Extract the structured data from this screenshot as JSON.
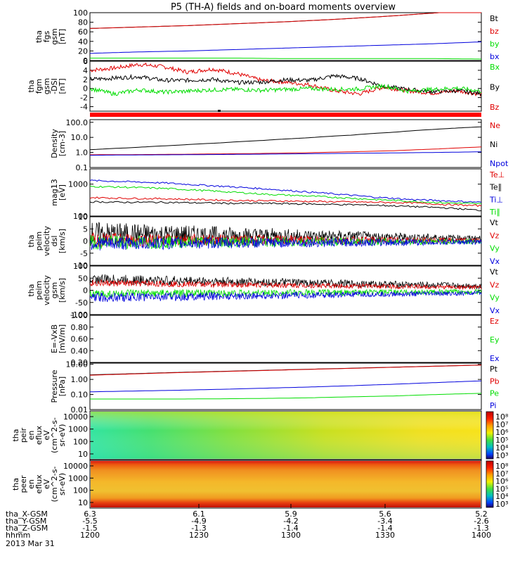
{
  "title": "P5 (TH-A) fields and on-board moments overview",
  "colors": {
    "black": "#000000",
    "red": "#e00000",
    "green": "#00dd00",
    "blue": "#0000dd",
    "bar_red": "#ff0000"
  },
  "chart_data": [
    {
      "id": "fgs",
      "type": "line",
      "ylabel": [
        "tha",
        "fgs",
        "gsm",
        "[nT]"
      ],
      "yticks": [
        "100",
        "80",
        "60",
        "40",
        "20",
        "0"
      ],
      "ylim": [
        0,
        100
      ],
      "legend": [
        {
          "label": "Bt",
          "color": "black"
        },
        {
          "label": "bz",
          "color": "red"
        },
        {
          "label": "by",
          "color": "green"
        },
        {
          "label": "bx",
          "color": "blue"
        }
      ],
      "series": [
        {
          "name": "Bt",
          "color": "black",
          "values": [
            67,
            70,
            73,
            77,
            81,
            86,
            92,
            99,
            106
          ]
        },
        {
          "name": "bz",
          "color": "red",
          "values": [
            67,
            70,
            73,
            77,
            81,
            86,
            92,
            99,
            106
          ]
        },
        {
          "name": "bx",
          "color": "blue",
          "values": [
            15,
            18,
            20,
            23,
            26,
            29,
            32,
            35,
            39
          ]
        },
        {
          "name": "by",
          "color": "green",
          "values": [
            5,
            5,
            5,
            5,
            4,
            4,
            4,
            4,
            3
          ]
        }
      ]
    },
    {
      "id": "fgm",
      "type": "line",
      "ylabel": [
        "tha",
        "fgm",
        "gsm",
        "-DSI",
        "[nT]"
      ],
      "yticks": [
        "6",
        "4",
        "2",
        "0",
        "-2",
        "-4"
      ],
      "ylim": [
        -5,
        6
      ],
      "legend": [
        {
          "label": "Bx",
          "color": "green"
        },
        {
          "label": "By",
          "color": "black"
        },
        {
          "label": "Bz",
          "color": "red"
        }
      ],
      "series": [
        {
          "name": "Bz",
          "color": "red",
          "values": [
            4,
            4.5,
            5.3,
            4.8,
            3.6,
            4.3,
            3.3,
            1.8,
            1.4,
            0.8,
            -0.5,
            -1.2,
            0.3,
            -0.5,
            -1.0,
            -0.5,
            -1.3
          ]
        },
        {
          "name": "By",
          "color": "black",
          "values": [
            2,
            2.3,
            2.6,
            1.8,
            1.8,
            2.0,
            1.3,
            1.4,
            1.9,
            1.8,
            2.8,
            2.2,
            0.5,
            -0.2,
            -0.7,
            -0.5,
            -1.1
          ]
        },
        {
          "name": "Bx",
          "color": "green",
          "values": [
            0,
            -1.2,
            -0.3,
            -0.8,
            -0.6,
            -0.3,
            -0.2,
            -0.4,
            -0.2,
            0.0,
            -0.2,
            -0.1,
            0.6,
            -0.6,
            -0.2,
            0.1,
            -0.6
          ]
        }
      ]
    },
    {
      "id": "density",
      "type": "line",
      "log": true,
      "ylabel": [
        "Density",
        "[cm-3]"
      ],
      "yticks": [
        "100.0",
        "10.0",
        "1.0",
        "0.1"
      ],
      "ylim": [
        0.1,
        150
      ],
      "legend": [
        {
          "label": "Ne",
          "color": "red"
        },
        {
          "label": "Ni",
          "color": "black"
        },
        {
          "label": "Npot",
          "color": "blue"
        }
      ],
      "series": [
        {
          "name": "Ni",
          "color": "black",
          "values": [
            1.5,
            2.1,
            3.0,
            4.3,
            6.3,
            9.3,
            14,
            22,
            35,
            50
          ]
        },
        {
          "name": "Ne",
          "color": "red",
          "values": [
            0.7,
            0.72,
            0.75,
            0.8,
            0.86,
            0.95,
            1.1,
            1.3,
            1.7,
            2.3
          ]
        },
        {
          "name": "Npot",
          "color": "blue",
          "values": [
            0.65,
            0.68,
            0.7,
            0.73,
            0.77,
            0.82,
            0.87,
            0.93,
            1.0,
            1.1
          ]
        }
      ]
    },
    {
      "id": "temp",
      "type": "line",
      "log": true,
      "ylabel": [
        "mag13",
        "[eV]"
      ],
      "yticks": [
        "1000",
        "100"
      ],
      "ylim": [
        100,
        3000
      ],
      "legend": [
        {
          "label": "Te⊥",
          "color": "red"
        },
        {
          "label": "Te∥",
          "color": "black"
        },
        {
          "label": "Ti⊥",
          "color": "blue"
        },
        {
          "label": "Ti∥",
          "color": "green"
        }
      ],
      "series": [
        {
          "name": "Ti⊥",
          "color": "blue",
          "values": [
            1300,
            1200,
            1100,
            950,
            820,
            700,
            580,
            480,
            390,
            330,
            300,
            270
          ]
        },
        {
          "name": "Ti∥",
          "color": "green",
          "values": [
            850,
            800,
            740,
            650,
            560,
            480,
            430,
            380,
            330,
            290,
            260,
            240
          ]
        },
        {
          "name": "Te⊥",
          "color": "red",
          "values": [
            380,
            360,
            350,
            330,
            310,
            300,
            290,
            280,
            270,
            260,
            230,
            210
          ]
        },
        {
          "name": "Te∥",
          "color": "black",
          "values": [
            280,
            270,
            270,
            260,
            250,
            250,
            240,
            230,
            220,
            200,
            180,
            150
          ]
        }
      ]
    },
    {
      "id": "vel_dsl",
      "type": "line",
      "ylabel": [
        "tha",
        "peim",
        "velocity",
        "dsl",
        "[km/s]"
      ],
      "yticks": [
        "10",
        "5",
        "0",
        "-5",
        "-10"
      ],
      "ylim": [
        -10,
        10
      ],
      "legend": [
        {
          "label": "Vt",
          "color": "black"
        },
        {
          "label": "Vz",
          "color": "red"
        },
        {
          "label": "Vy",
          "color": "green"
        },
        {
          "label": "Vx",
          "color": "blue"
        }
      ],
      "series": [
        {
          "name": "Vt",
          "color": "black",
          "center": 3,
          "amp": [
            5,
            1
          ]
        },
        {
          "name": "Vz",
          "color": "red",
          "center": 0.5,
          "amp": [
            3,
            1
          ]
        },
        {
          "name": "Vy",
          "color": "green",
          "center": -0.5,
          "amp": [
            3,
            1
          ]
        },
        {
          "name": "Vx",
          "color": "blue",
          "center": -1,
          "amp": [
            3,
            1
          ]
        }
      ]
    },
    {
      "id": "vel_gsm",
      "type": "line",
      "ylabel": [
        "tha",
        "peim",
        "velocity",
        "gsm",
        "[km/s]"
      ],
      "yticks": [
        "100",
        "50",
        "0",
        "-50",
        "-100"
      ],
      "ylim": [
        -100,
        100
      ],
      "legend": [
        {
          "label": "Vt",
          "color": "black"
        },
        {
          "label": "Vz",
          "color": "red"
        },
        {
          "label": "Vy",
          "color": "green"
        },
        {
          "label": "Vx",
          "color": "blue"
        }
      ],
      "series": [
        {
          "name": "Vt",
          "color": "black",
          "center": 45,
          "amp": [
            22,
            12
          ]
        },
        {
          "name": "Vz",
          "color": "red",
          "center": 30,
          "amp": [
            14,
            8
          ]
        },
        {
          "name": "Vy",
          "color": "green",
          "center": -15,
          "amp": [
            18,
            10
          ]
        },
        {
          "name": "Vx",
          "color": "blue",
          "center": -30,
          "amp": [
            20,
            8
          ]
        }
      ]
    },
    {
      "id": "efield",
      "type": "line",
      "ylabel": [
        "E=-VxB",
        "[mV/m]"
      ],
      "yticks": [
        "1.00",
        "0.80",
        "0.60",
        "0.40",
        "0.20"
      ],
      "ylim": [
        0.2,
        1.0
      ],
      "legend": [
        {
          "label": "Ez",
          "color": "red"
        },
        {
          "label": "Ey",
          "color": "green"
        },
        {
          "label": "Ex",
          "color": "blue"
        }
      ],
      "series": []
    },
    {
      "id": "pressure",
      "type": "line",
      "log": true,
      "ylabel": [
        "Pressure",
        "[nPa]"
      ],
      "yticks": [
        "10.00",
        "1.00",
        "0.10",
        "0.01"
      ],
      "ylim": [
        0.01,
        12
      ],
      "legend": [
        {
          "label": "Pt",
          "color": "black"
        },
        {
          "label": "Pb",
          "color": "red"
        },
        {
          "label": "Pe",
          "color": "green"
        },
        {
          "label": "Pi",
          "color": "blue"
        }
      ],
      "series": [
        {
          "name": "Pt",
          "color": "black",
          "values": [
            2.0,
            2.4,
            2.9,
            3.4,
            4.0,
            4.7,
            5.5,
            6.5,
            7.6,
            9.0
          ]
        },
        {
          "name": "Pb",
          "color": "red",
          "values": [
            1.9,
            2.3,
            2.8,
            3.3,
            3.9,
            4.6,
            5.4,
            6.4,
            7.5,
            8.9
          ]
        },
        {
          "name": "Pi",
          "color": "blue",
          "values": [
            0.15,
            0.17,
            0.19,
            0.22,
            0.26,
            0.31,
            0.38,
            0.48,
            0.62,
            0.8
          ]
        },
        {
          "name": "Pe",
          "color": "green",
          "values": [
            0.05,
            0.05,
            0.05,
            0.052,
            0.055,
            0.06,
            0.07,
            0.08,
            0.1,
            0.12
          ]
        }
      ]
    },
    {
      "id": "peir",
      "type": "heatmap",
      "ylabel": [
        "tha",
        "peir",
        "en",
        "eflux",
        "eV",
        "(cm^2-s-",
        "sr-eV)"
      ],
      "yticks": [
        "10000",
        "1000",
        "100",
        "10"
      ],
      "colorbar": [
        "10⁸",
        "10⁷",
        "10⁶",
        "10⁵",
        "10⁴",
        "10³"
      ]
    },
    {
      "id": "peer",
      "type": "heatmap",
      "ylabel": [
        "tha",
        "peer",
        "en",
        "eflux",
        "eV",
        "(cm^2-s-",
        "sr-eV)"
      ],
      "yticks": [
        "10000",
        "1000",
        "100",
        "10"
      ],
      "colorbar": [
        "10⁸",
        "10⁷",
        "10⁶",
        "10⁵",
        "10⁴",
        "10³"
      ]
    }
  ],
  "xaxis": {
    "rows": [
      {
        "label": "tha_X-GSM",
        "values": [
          "6.3",
          "6.1",
          "5.9",
          "5.6",
          "5.2"
        ]
      },
      {
        "label": "tha_Y-GSM",
        "values": [
          "-5.5",
          "-4.9",
          "-4.2",
          "-3.4",
          "-2.6"
        ]
      },
      {
        "label": "tha_Z-GSM",
        "values": [
          "-1.5",
          "-1.3",
          "-1.4",
          "-1.4",
          "-1.3"
        ]
      },
      {
        "label": "hhmm",
        "values": [
          "1200",
          "1230",
          "1300",
          "1330",
          "1400"
        ]
      }
    ],
    "date": "2013 Mar 31"
  }
}
